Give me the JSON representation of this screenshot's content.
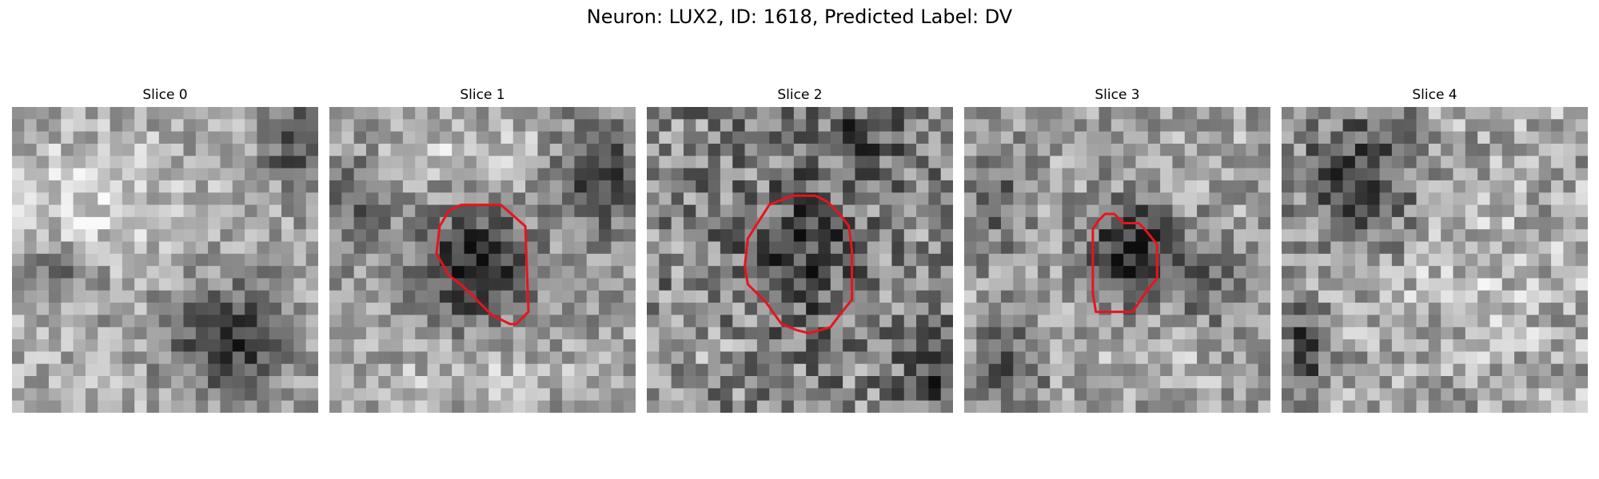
{
  "figure": {
    "title": "Neuron: LUX2, ID: 1618, Predicted Label: DV",
    "colormap": "gray",
    "contour_color": "#e8141c"
  },
  "slices": [
    {
      "title": "Slice 0",
      "has_contour": false
    },
    {
      "title": "Slice 1",
      "has_contour": true
    },
    {
      "title": "Slice 2",
      "has_contour": true
    },
    {
      "title": "Slice 3",
      "has_contour": true
    },
    {
      "title": "Slice 4",
      "has_contour": false
    }
  ]
}
